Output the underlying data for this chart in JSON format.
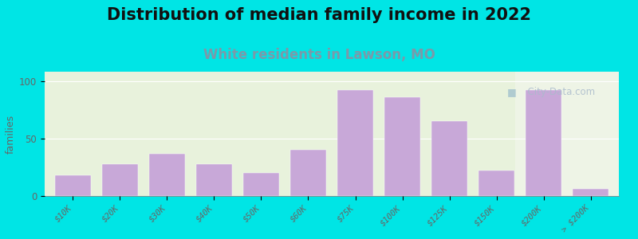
{
  "title": "Distribution of median family income in 2022",
  "subtitle": "White residents in Lawson, MO",
  "ylabel": "families",
  "categories": [
    "$10K",
    "$20K",
    "$30K",
    "$40K",
    "$50K",
    "$60K",
    "$75K",
    "$100K",
    "$125K",
    "$150K",
    "$200K",
    "> $200K"
  ],
  "values": [
    18,
    28,
    37,
    28,
    20,
    40,
    92,
    86,
    65,
    22,
    92,
    6
  ],
  "bar_color": "#c8a8d8",
  "bg_outer": "#00e5e5",
  "bg_plot_main": "#e8f2dc",
  "bg_plot_right": "#eef4e6",
  "title_fontsize": 15,
  "subtitle_fontsize": 12,
  "subtitle_color": "#7a9aaa",
  "ylabel_fontsize": 9,
  "tick_fontsize": 7.5,
  "yticks": [
    0,
    50,
    100
  ],
  "ylim": [
    0,
    108
  ],
  "watermark": "  City-Data.com"
}
